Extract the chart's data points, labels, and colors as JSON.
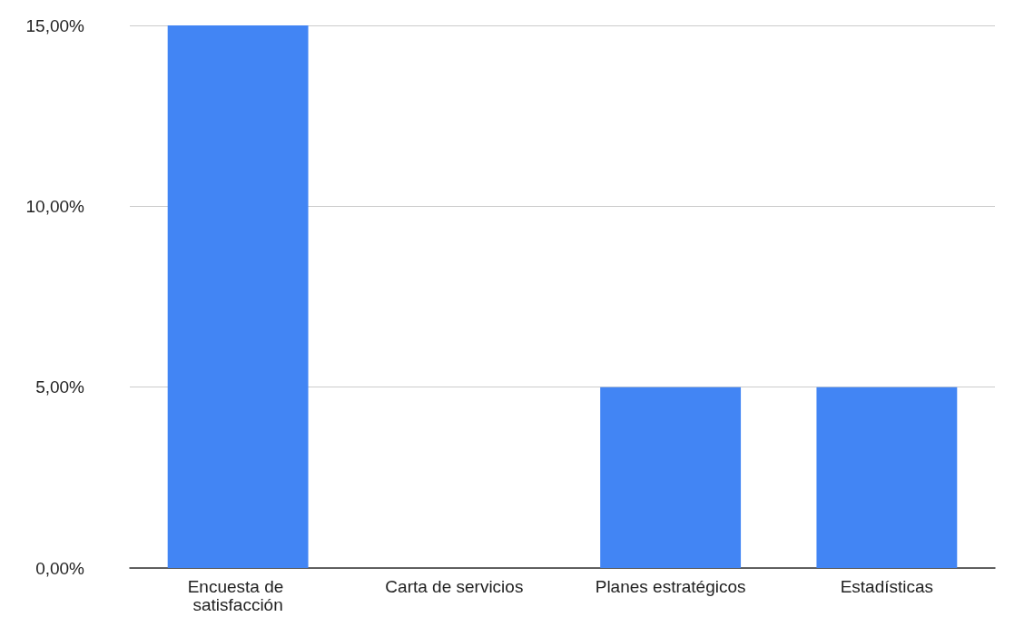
{
  "chart_data": {
    "type": "bar",
    "categories": [
      "Encuesta de satisfacción",
      "Carta de servicios",
      "Planes estratégicos",
      "Estadísticas"
    ],
    "values": [
      15,
      0,
      5,
      5
    ],
    "color": "#4285f4",
    "ylim": [
      0,
      15
    ],
    "yticks": [
      {
        "value": 0,
        "label": "0,00%"
      },
      {
        "value": 5,
        "label": "5,00%"
      },
      {
        "value": 10,
        "label": "10,00%"
      },
      {
        "value": 15,
        "label": "15,00%"
      }
    ],
    "grid": "y"
  }
}
